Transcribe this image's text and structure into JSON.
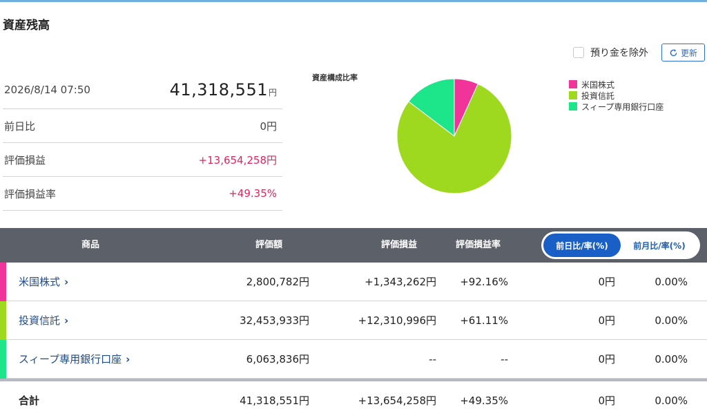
{
  "page": {
    "title": "資産残高"
  },
  "controls": {
    "exclude_label": "預り金を除外",
    "refresh_label": "更新"
  },
  "summary": {
    "datetime": "2026/8/14 07:50",
    "total": "41,318,551",
    "total_unit": "円",
    "rows": [
      {
        "label": "前日比",
        "value": "0円"
      },
      {
        "label": "評価損益",
        "value": "+13,654,258円"
      },
      {
        "label": "評価損益率",
        "value": "+49.35%"
      }
    ]
  },
  "chart_data": {
    "type": "pie",
    "title": "資産構成比率",
    "categories": [
      "米国株式",
      "投資信託",
      "スィープ専用銀行口座"
    ],
    "values": [
      2800782,
      32453933,
      6063836
    ],
    "colors": [
      "#f0349a",
      "#9ed81f",
      "#1de68a"
    ],
    "legend": "right"
  },
  "table": {
    "headers": {
      "product": "商品",
      "valuation": "評価額",
      "gain": "評価損益",
      "gain_rate": "評価損益率",
      "toggle_day": "前日比/率(%)",
      "toggle_month": "前月比/率(%)"
    },
    "rows": [
      {
        "name": "米国株式",
        "valuation": "2,800,782円",
        "gain": "+1,343,262円",
        "gain_rate": "+92.16%",
        "diff": "0円",
        "diff_rate": "0.00%",
        "color": "#f0349a"
      },
      {
        "name": "投資信託",
        "valuation": "32,453,933円",
        "gain": "+12,310,996円",
        "gain_rate": "+61.11%",
        "diff": "0円",
        "diff_rate": "0.00%",
        "color": "#9ed81f"
      },
      {
        "name": "スィープ専用銀行口座",
        "valuation": "6,063,836円",
        "gain": "--",
        "gain_rate": "--",
        "diff": "0円",
        "diff_rate": "0.00%",
        "color": "#1de68a"
      }
    ],
    "total": {
      "name": "合計",
      "valuation": "41,318,551円",
      "gain": "+13,654,258円",
      "gain_rate": "+49.35%",
      "diff": "0円",
      "diff_rate": "0.00%"
    }
  }
}
